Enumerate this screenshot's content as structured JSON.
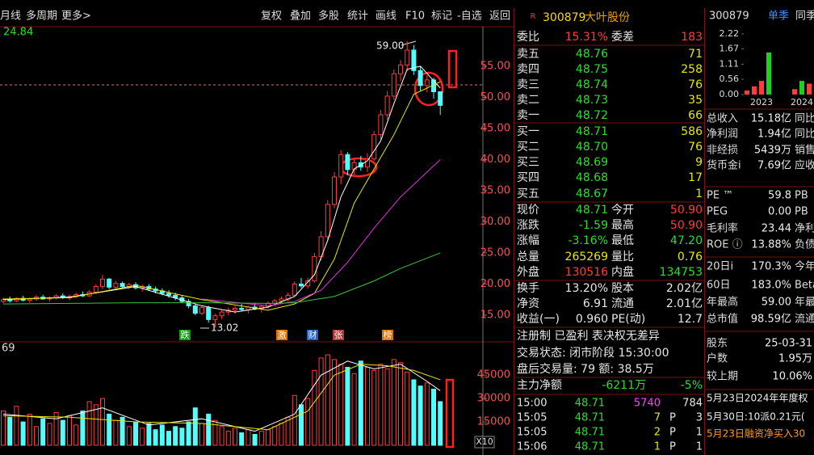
{
  "toolbar": {
    "left": [
      "月线",
      "多周期",
      "更多>"
    ],
    "right": [
      "复权",
      "叠加",
      "多股",
      "统计",
      "画线",
      "F10",
      "标记",
      "-自选",
      "返回"
    ]
  },
  "chart_data": [
    {
      "type": "candlestick",
      "top_label": "24.84",
      "volume_top_label": "69",
      "high_label": "59.00",
      "low_label": "13.02",
      "volume_unit": "X10",
      "signals": [
        "跌",
        "激",
        "财",
        "张",
        "榜"
      ],
      "up_color": "#ff3c3c",
      "down_color": "#54fcfc",
      "ylim": [
        11.1,
        61.1
      ],
      "yticks": [
        {
          "value": 15,
          "label": "15.00"
        },
        {
          "value": 20,
          "label": "20.00"
        },
        {
          "value": 25,
          "label": "25.00"
        },
        {
          "value": 30,
          "label": "30.00"
        },
        {
          "value": 35,
          "label": "35.00"
        },
        {
          "value": 40,
          "label": "40.00"
        },
        {
          "value": 45,
          "label": "45.00"
        },
        {
          "value": 50,
          "label": "50.00"
        },
        {
          "value": 55,
          "label": "55.00"
        }
      ],
      "volume_ylim": [
        0,
        62700
      ],
      "volume_yticks": [
        15000,
        30000,
        45000
      ],
      "candles": [
        [
          17.2,
          17.8,
          16.9,
          17.5
        ],
        [
          17.5,
          18.0,
          17.0,
          17.3
        ],
        [
          17.3,
          17.9,
          17.1,
          17.7
        ],
        [
          17.7,
          18.1,
          17.2,
          17.4
        ],
        [
          17.4,
          17.8,
          17.0,
          17.6
        ],
        [
          17.6,
          18.2,
          17.3,
          17.9
        ],
        [
          17.9,
          18.3,
          17.5,
          17.6
        ],
        [
          17.6,
          18.0,
          17.2,
          17.8
        ],
        [
          17.8,
          18.4,
          17.5,
          18.1
        ],
        [
          18.1,
          18.5,
          17.6,
          17.8
        ],
        [
          17.8,
          18.3,
          17.4,
          18.0
        ],
        [
          18.0,
          18.6,
          17.7,
          18.3
        ],
        [
          18.3,
          18.8,
          17.9,
          18.1
        ],
        [
          18.1,
          19.0,
          17.9,
          18.7
        ],
        [
          18.7,
          20.0,
          18.4,
          19.6
        ],
        [
          19.6,
          21.5,
          19.2,
          20.8
        ],
        [
          20.8,
          21.0,
          19.2,
          19.5
        ],
        [
          19.5,
          20.5,
          19.0,
          20.1
        ],
        [
          20.1,
          20.4,
          19.3,
          19.6
        ],
        [
          19.6,
          20.2,
          19.2,
          19.9
        ],
        [
          19.9,
          20.3,
          19.1,
          19.4
        ],
        [
          19.4,
          19.9,
          18.8,
          19.6
        ],
        [
          19.6,
          20.0,
          18.9,
          19.2
        ],
        [
          19.2,
          19.6,
          18.5,
          18.9
        ],
        [
          18.9,
          19.3,
          18.2,
          18.5
        ],
        [
          18.5,
          19.0,
          17.8,
          18.2
        ],
        [
          18.2,
          18.6,
          17.4,
          17.8
        ],
        [
          17.8,
          18.2,
          16.9,
          17.2
        ],
        [
          17.2,
          17.6,
          16.1,
          16.5
        ],
        [
          16.5,
          16.8,
          15.0,
          15.3
        ],
        [
          15.3,
          16.6,
          15.0,
          16.2
        ],
        [
          16.2,
          16.5,
          13.8,
          14.3
        ],
        [
          14.3,
          15.2,
          13.02,
          14.9
        ],
        [
          14.9,
          15.8,
          14.4,
          15.5
        ],
        [
          15.5,
          16.2,
          15.0,
          15.8
        ],
        [
          15.8,
          16.5,
          15.2,
          16.1
        ],
        [
          16.1,
          16.8,
          15.6,
          15.9
        ],
        [
          15.9,
          16.5,
          15.3,
          16.3
        ],
        [
          16.3,
          17.0,
          15.8,
          16.0
        ],
        [
          16.0,
          16.6,
          15.4,
          16.4
        ],
        [
          16.4,
          17.2,
          16.0,
          16.9
        ],
        [
          16.9,
          17.6,
          16.4,
          17.3
        ],
        [
          17.3,
          18.0,
          16.8,
          17.6
        ],
        [
          17.6,
          18.6,
          17.2,
          18.2
        ],
        [
          18.2,
          20.4,
          18.0,
          20.0
        ],
        [
          20.0,
          21.0,
          19.4,
          19.7
        ],
        [
          19.7,
          21.0,
          19.3,
          20.5
        ],
        [
          20.5,
          25.0,
          20.2,
          24.4
        ],
        [
          24.4,
          28.5,
          23.8,
          27.6
        ],
        [
          27.6,
          33.5,
          27.0,
          32.8
        ],
        [
          32.8,
          38.0,
          32.2,
          37.2
        ],
        [
          37.2,
          41.5,
          36.0,
          40.8
        ],
        [
          40.8,
          41.2,
          37.5,
          38.4
        ],
        [
          38.4,
          40.0,
          37.6,
          39.5
        ],
        [
          39.5,
          40.6,
          38.2,
          38.8
        ],
        [
          38.8,
          41.0,
          38.0,
          40.1
        ],
        [
          40.1,
          44.6,
          39.8,
          44.0
        ],
        [
          44.0,
          48.0,
          43.2,
          47.2
        ],
        [
          47.2,
          51.0,
          46.4,
          50.2
        ],
        [
          50.2,
          54.5,
          49.6,
          53.8
        ],
        [
          53.8,
          56.0,
          52.6,
          55.2
        ],
        [
          55.2,
          59.0,
          54.2,
          57.6
        ],
        [
          57.6,
          58.4,
          53.6,
          54.3
        ],
        [
          54.3,
          55.0,
          51.0,
          51.9
        ],
        [
          51.9,
          53.6,
          50.8,
          52.8
        ],
        [
          52.8,
          53.2,
          49.8,
          50.9
        ],
        [
          50.9,
          50.9,
          47.2,
          48.71
        ]
      ],
      "volumes": [
        22000,
        18000,
        25000,
        15000,
        20000,
        12000,
        17000,
        14000,
        21000,
        16000,
        19000,
        13000,
        22000,
        28000,
        26000,
        30000,
        20000,
        16000,
        18000,
        12000,
        15000,
        11000,
        14000,
        10000,
        13000,
        9000,
        12000,
        11000,
        15000,
        24000,
        14000,
        20000,
        16000,
        12000,
        9000,
        11000,
        8000,
        10000,
        7000,
        9000,
        10000,
        12000,
        14000,
        18000,
        32000,
        26000,
        30000,
        48000,
        56000,
        58000,
        55000,
        52000,
        50000,
        46000,
        54000,
        50000,
        48000,
        52000,
        49000,
        55000,
        53000,
        47000,
        42000,
        38000,
        40000,
        36000,
        28000
      ],
      "ma": [
        {
          "color": "#ffffff",
          "x": [
            0,
            10,
            20,
            30,
            35,
            40,
            44,
            47,
            49,
            51,
            53,
            55,
            57,
            59,
            61,
            63,
            66
          ],
          "values": [
            17.5,
            17.9,
            19.6,
            16.5,
            15.5,
            16.3,
            18.0,
            21.5,
            27,
            34,
            38.5,
            39.8,
            43,
            49,
            54.5,
            55,
            51.5
          ]
        },
        {
          "color": "#e8e800",
          "x": [
            0,
            10,
            20,
            30,
            40,
            44,
            47,
            50,
            53,
            56,
            59,
            62,
            66
          ],
          "values": [
            17.6,
            17.8,
            19.8,
            17.5,
            15.8,
            16.8,
            18.5,
            24,
            33,
            38.5,
            44,
            50.5,
            52.5
          ]
        },
        {
          "color": "#e030e0",
          "x": [
            30,
            40,
            44,
            48,
            52,
            56,
            60,
            64,
            66
          ],
          "values": [
            17.6,
            16.5,
            17.2,
            19.0,
            23.5,
            29,
            34,
            38,
            40
          ]
        },
        {
          "color": "#40c040",
          "x": [
            0,
            20,
            30,
            40,
            44,
            50,
            56,
            60,
            66
          ],
          "values": [
            16.8,
            17.0,
            17.0,
            16.9,
            17.0,
            18,
            20.5,
            22.5,
            25.0
          ]
        }
      ],
      "volume_ma": [
        {
          "color": "#ffffff",
          "x": [
            0,
            8,
            15,
            22,
            30,
            38,
            44,
            48,
            52,
            56,
            60,
            64,
            66
          ],
          "values": [
            20000,
            17000,
            24000,
            13000,
            17000,
            9000,
            20000,
            45000,
            54000,
            49000,
            52000,
            41000,
            35000
          ]
        },
        {
          "color": "#e8e800",
          "x": [
            0,
            10,
            20,
            30,
            40,
            46,
            50,
            54,
            58,
            62,
            66
          ],
          "values": [
            19000,
            18000,
            15000,
            14000,
            10000,
            22000,
            45000,
            52000,
            51000,
            48000,
            42000
          ]
        }
      ]
    },
    {
      "type": "bar",
      "ylim": [
        0,
        2.22
      ],
      "yticks": [
        {
          "value": 0,
          "label": "0.00"
        },
        0.56,
        1.11,
        1.67,
        2.22
      ],
      "categories": [
        null,
        null,
        "2023",
        null,
        null,
        "2024",
        null
      ],
      "values": [
        0.15,
        0.3,
        0.5,
        1.54,
        0.2,
        0.5,
        0.4
      ],
      "colors": [
        "#ff3c3c",
        "#ff3c3c",
        "#ff3c3c",
        "#20d020",
        "#ff3c3c",
        "#20d020",
        "#ff3c3c"
      ]
    }
  ],
  "quote": {
    "flag": "R",
    "code": "300879",
    "name": "大叶股份",
    "rows": [
      [
        "委比",
        "15.31%",
        "委差",
        "183"
      ],
      [
        "卖五",
        "48.76",
        "71"
      ],
      [
        "卖四",
        "48.75",
        "258"
      ],
      [
        "卖三",
        "48.74",
        "76"
      ],
      [
        "卖二",
        "48.73",
        "35"
      ],
      [
        "卖一",
        "48.72",
        "66"
      ],
      [
        "买一",
        "48.71",
        "586"
      ],
      [
        "买二",
        "48.70",
        "76"
      ],
      [
        "买三",
        "48.69",
        "9"
      ],
      [
        "买四",
        "48.68",
        "17"
      ],
      [
        "买五",
        "48.67",
        "1"
      ],
      [
        "现价",
        "48.71",
        "今开",
        "50.90"
      ],
      [
        "涨跌",
        "-1.59",
        "最高",
        "50.90"
      ],
      [
        "涨幅",
        "-3.16%",
        "最低",
        "47.20"
      ],
      [
        "总量",
        "265269",
        "量比",
        "0.76"
      ],
      [
        "外盘",
        "130516",
        "内盘",
        "134753"
      ],
      [
        "换手",
        "13.20%",
        "股本",
        "2.02亿"
      ],
      [
        "净资",
        "6.91",
        "流通",
        "2.01亿"
      ],
      [
        "收益(一)",
        "0.960",
        "PE(动)",
        "12.7"
      ],
      [
        "注册制 已盈利 表决权无差异"
      ],
      [
        "交易状态: 闭市阶段 15:30:00"
      ],
      [
        "盘后交易量: 79  额: 38.5万"
      ],
      [
        "主力净额",
        "-6211万",
        "-5%"
      ]
    ],
    "ticks": [
      [
        "15:00",
        "48.71",
        "5740",
        "784"
      ],
      [
        "15:05",
        "48.71",
        "7",
        "P",
        "3"
      ],
      [
        "15:05",
        "48.71",
        "2",
        "P",
        "1"
      ],
      [
        "15:06",
        "48.71",
        "1",
        "P",
        "1"
      ]
    ]
  },
  "finance": {
    "code": "300879",
    "tab": "单季",
    "tab2": "同季",
    "rows": [
      [
        "总收入",
        "15.18亿",
        "同比"
      ],
      [
        "净利润",
        "1.94亿",
        "同比"
      ],
      [
        "非经损",
        "5439万",
        "销售"
      ],
      [
        "货币金i",
        "7.69亿",
        "应收"
      ],
      [
        "PE ™",
        "59.8",
        "PB"
      ],
      [
        "PEG",
        "0.00",
        "PB"
      ],
      [
        "毛利率",
        "23.44",
        "净利"
      ],
      [
        "ROE ⓘ",
        "13.88%",
        "负债"
      ],
      [
        "20日i",
        "170.3%",
        "今年"
      ],
      [
        "60日",
        "183.0%",
        "Beta"
      ],
      [
        "年最高",
        "59.00",
        "年最"
      ],
      [
        "总市值",
        "98.59亿",
        "流通"
      ],
      [
        "股东",
        "25-03-31"
      ],
      [
        "户数",
        "1.95万"
      ],
      [
        "较上期",
        "10.06%"
      ]
    ],
    "notes": [
      "5月23日2024年年度权",
      "5月30日:10派0.21元(",
      "5月23日融资净买入30"
    ]
  }
}
